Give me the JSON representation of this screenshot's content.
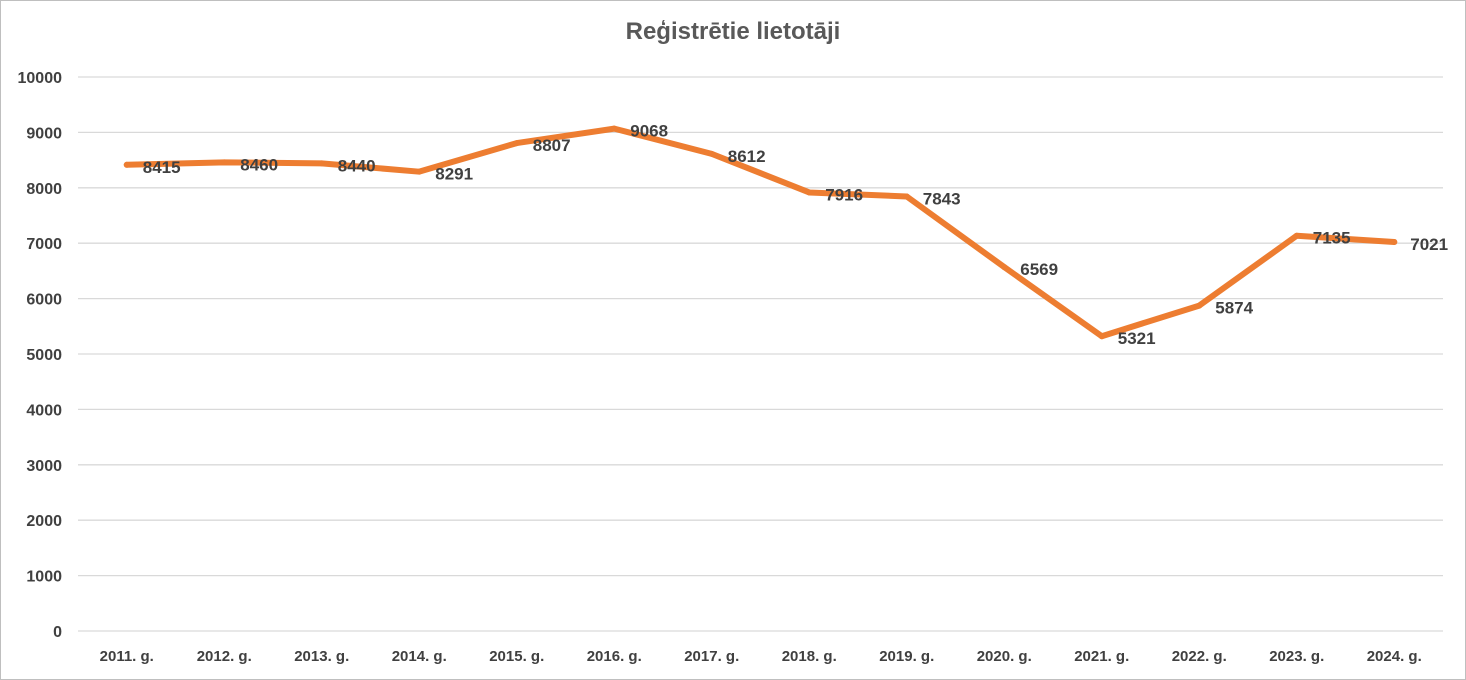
{
  "chart_data": {
    "type": "line",
    "title": "Reģistrētie lietotāji",
    "xlabel": "",
    "ylabel": "",
    "categories": [
      "2011. g.",
      "2012. g.",
      "2013. g.",
      "2014. g.",
      "2015. g.",
      "2016. g.",
      "2017. g.",
      "2018. g.",
      "2019. g.",
      "2020. g.",
      "2021. g.",
      "2022. g.",
      "2023. g.",
      "2024. g."
    ],
    "series": [
      {
        "values": [
          8415,
          8460,
          8440,
          8291,
          8807,
          9068,
          8612,
          7916,
          7843,
          6569,
          5321,
          5874,
          7135,
          7021
        ],
        "color": "#ed7d31"
      }
    ],
    "ylim": [
      0,
      10000
    ],
    "yticks": [
      0,
      1000,
      2000,
      3000,
      4000,
      5000,
      6000,
      7000,
      8000,
      9000,
      10000
    ],
    "grid": true,
    "data_labels": true,
    "legend": "none"
  }
}
